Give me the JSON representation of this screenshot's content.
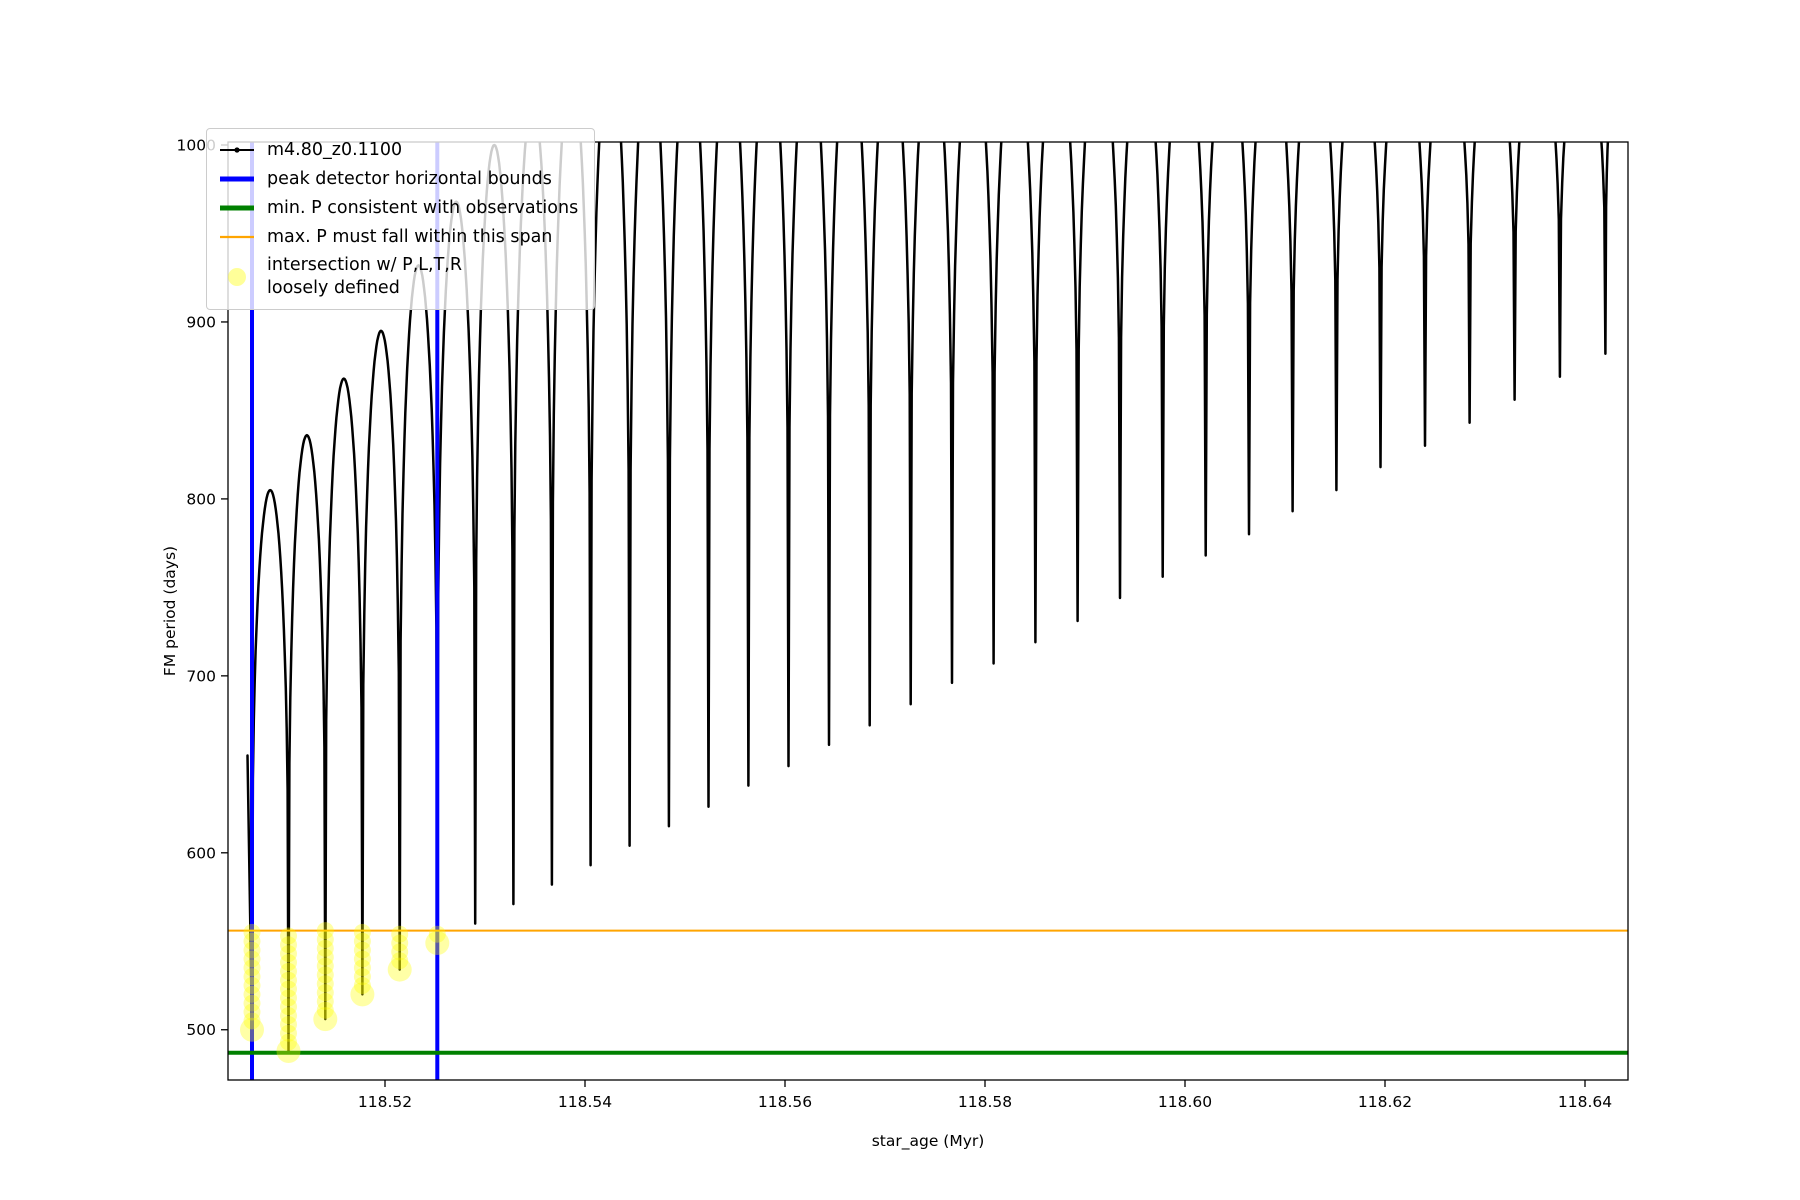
{
  "axes": {
    "xlabel": "star_age (Myr)",
    "ylabel": "FM period (days)",
    "xlim": [
      118.5043,
      118.6443
    ],
    "ylim": [
      471.6,
      1001.7
    ],
    "xticks": [
      {
        "v": 118.52,
        "label": "118.52"
      },
      {
        "v": 118.54,
        "label": "118.54"
      },
      {
        "v": 118.56,
        "label": "118.56"
      },
      {
        "v": 118.58,
        "label": "118.58"
      },
      {
        "v": 118.6,
        "label": "118.60"
      },
      {
        "v": 118.62,
        "label": "118.62"
      },
      {
        "v": 118.64,
        "label": "118.64"
      }
    ],
    "yticks": [
      {
        "v": 500,
        "label": "500"
      },
      {
        "v": 600,
        "label": "600"
      },
      {
        "v": 700,
        "label": "700"
      },
      {
        "v": 800,
        "label": "800"
      },
      {
        "v": 900,
        "label": "900"
      },
      {
        "v": 1000,
        "label": "1000"
      }
    ]
  },
  "chart_data": {
    "type": "line",
    "title": "",
    "xlabel": "star_age (Myr)",
    "ylabel": "FM period (days)",
    "xlim": [
      118.5043,
      118.6443
    ],
    "ylim": [
      471.6,
      1001.7
    ],
    "grid": false,
    "legend_position": "upper left",
    "series": [
      {
        "name": "m4.80_z0.1100",
        "color": "#000000",
        "marker": "point",
        "description": "FM period oscillates in repeated spikes: sharp narrow minima (dips) separated by broad maxima; maxima exceed the axis top (clipped at ~1000) for x > ~118.53. Each entry gives the dip position [x, min] and the peak value between this dip and the next (peak_after).",
        "dips": [
          {
            "x": 118.5067,
            "min": 500,
            "peak_after": 805
          },
          {
            "x": 118.51035,
            "min": 488,
            "peak_after": 836
          },
          {
            "x": 118.51403,
            "min": 506,
            "peak_after": 868
          },
          {
            "x": 118.51774,
            "min": 520,
            "peak_after": 895
          },
          {
            "x": 118.52147,
            "min": 534,
            "peak_after": 932
          },
          {
            "x": 118.52523,
            "min": 549,
            "peak_after": 968
          },
          {
            "x": 118.52902,
            "min": 560,
            "peak_after": 1000
          },
          {
            "x": 118.53284,
            "min": 571,
            "peak_after": 1025
          },
          {
            "x": 118.53669,
            "min": 582,
            "peak_after": 1045
          },
          {
            "x": 118.54056,
            "min": 593,
            "peak_after": 1060
          },
          {
            "x": 118.54446,
            "min": 604,
            "peak_after": 1060
          },
          {
            "x": 118.54839,
            "min": 615,
            "peak_after": 1060
          },
          {
            "x": 118.55235,
            "min": 626,
            "peak_after": 1060
          },
          {
            "x": 118.55634,
            "min": 638,
            "peak_after": 1060
          },
          {
            "x": 118.56035,
            "min": 649,
            "peak_after": 1060
          },
          {
            "x": 118.5644,
            "min": 661,
            "peak_after": 1060
          },
          {
            "x": 118.56847,
            "min": 672,
            "peak_after": 1060
          },
          {
            "x": 118.57257,
            "min": 684,
            "peak_after": 1060
          },
          {
            "x": 118.5767,
            "min": 696,
            "peak_after": 1060
          },
          {
            "x": 118.58086,
            "min": 707,
            "peak_after": 1060
          },
          {
            "x": 118.58504,
            "min": 719,
            "peak_after": 1060
          },
          {
            "x": 118.58926,
            "min": 731,
            "peak_after": 1060
          },
          {
            "x": 118.5935,
            "min": 744,
            "peak_after": 1060
          },
          {
            "x": 118.59777,
            "min": 756,
            "peak_after": 1060
          },
          {
            "x": 118.60207,
            "min": 768,
            "peak_after": 1060
          },
          {
            "x": 118.6064,
            "min": 780,
            "peak_after": 1060
          },
          {
            "x": 118.61076,
            "min": 793,
            "peak_after": 1060
          },
          {
            "x": 118.61514,
            "min": 805,
            "peak_after": 1060
          },
          {
            "x": 118.61955,
            "min": 818,
            "peak_after": 1060
          },
          {
            "x": 118.624,
            "min": 830,
            "peak_after": 1060
          },
          {
            "x": 118.62846,
            "min": 843,
            "peak_after": 1060
          },
          {
            "x": 118.63296,
            "min": 856,
            "peak_after": 1060
          },
          {
            "x": 118.63749,
            "min": 869,
            "peak_after": 1060
          },
          {
            "x": 118.64204,
            "min": 882,
            "peak_after": 1060
          }
        ]
      }
    ],
    "vlines": {
      "label": "peak detector horizontal bounds",
      "color": "#0000ff",
      "linewidth": 4,
      "x": [
        118.5067,
        118.52523
      ]
    },
    "hlines": [
      {
        "label": "min. P consistent with observations",
        "color": "#008000",
        "linewidth": 4,
        "y": 487
      },
      {
        "label": "max. P must fall within this span",
        "color": "#ffa500",
        "linewidth": 2,
        "y": 556
      }
    ],
    "scatter": {
      "label": "intersection w/ P,L,T,R loosely defined",
      "color": "#ffff00",
      "alpha": 0.35,
      "dip_indices": [
        0,
        1,
        2,
        3,
        4,
        5
      ],
      "y_max": 556,
      "description": "Chains of large translucent yellow circles along the bottoms of the first six dips, from each dip minimum up to y = 556 (the orange line)."
    }
  },
  "legend": {
    "items": [
      {
        "label": "m4.80_z0.1100",
        "type": "line-dot",
        "color": "#000000",
        "icon": "black-series-line-icon"
      },
      {
        "label": "peak detector horizontal bounds",
        "type": "line-thick",
        "color": "#0000ff",
        "icon": "blue-vline-icon"
      },
      {
        "label": "min. P consistent with observations",
        "type": "line-thick",
        "color": "#008000",
        "icon": "green-hline-icon"
      },
      {
        "label": "max. P must fall within this span",
        "type": "line",
        "color": "#ffa500",
        "icon": "orange-hline-icon"
      },
      {
        "label": "intersection w/ P,L,T,R",
        "label2": "loosely defined",
        "type": "circle",
        "color": "#ffff00",
        "icon": "yellow-marker-icon"
      }
    ]
  }
}
